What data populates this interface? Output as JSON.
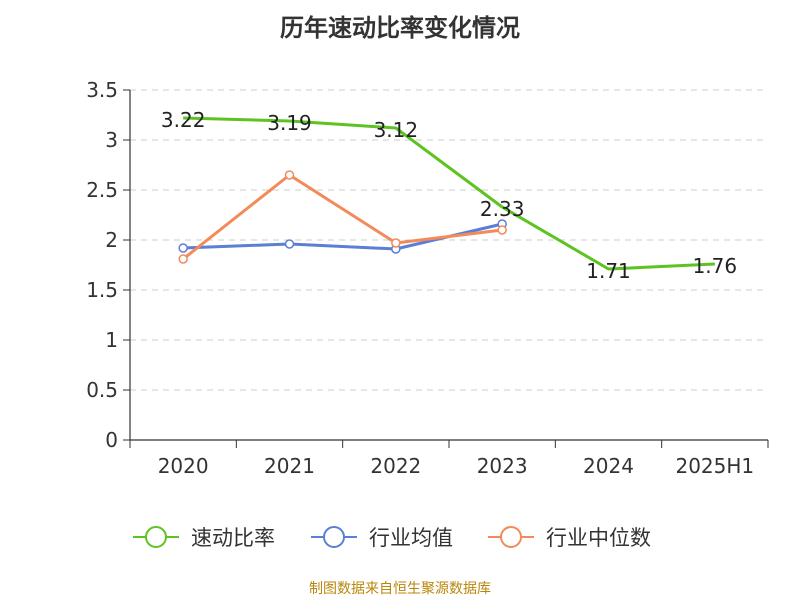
{
  "chart_data": {
    "type": "line",
    "title": "历年速动比率变化情况",
    "categories": [
      "2020",
      "2021",
      "2022",
      "2023",
      "2024",
      "2025H1"
    ],
    "ylim": [
      0,
      3.5
    ],
    "yticks": [
      "0",
      "0.5",
      "1",
      "1.5",
      "2",
      "2.5",
      "3",
      "3.5"
    ],
    "grid": true,
    "legend_position": "bottom",
    "series": [
      {
        "name": "速动比率",
        "color": "#5cc320",
        "values": [
          3.22,
          3.19,
          3.12,
          2.33,
          1.71,
          1.76
        ],
        "labels": [
          "3.22",
          "3.19",
          "3.12",
          "2.33",
          "1.71",
          "1.76"
        ]
      },
      {
        "name": "行业均值",
        "color": "#5b7fd6",
        "values": [
          1.92,
          1.96,
          1.91,
          2.16,
          null,
          null
        ]
      },
      {
        "name": "行业中位数",
        "color": "#f28a5a",
        "values": [
          1.81,
          2.65,
          1.97,
          2.1,
          null,
          null
        ]
      }
    ]
  },
  "source": "制图数据来自恒生聚源数据库"
}
